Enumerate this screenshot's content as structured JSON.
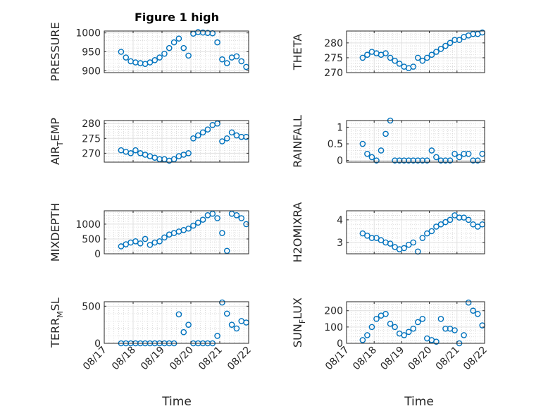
{
  "figure": {
    "title": "Figure 1 high",
    "xlabel": "Time",
    "marker_color": "#0072BD"
  },
  "x_ticks": [
    "08/17",
    "08/18",
    "08/19",
    "08/20",
    "08/21",
    "08/22"
  ],
  "chart_data": [
    {
      "type": "scatter",
      "ylabel_main": "PRESSURE",
      "ylabel_sub": "",
      "ylim": [
        895,
        1005
      ],
      "yticks": [
        900,
        950,
        1000
      ],
      "grid": true,
      "minor_grid": true,
      "x": [
        "08/17 14:00",
        "08/17 18:00",
        "08/17 22:00",
        "08/18 02:00",
        "08/18 06:00",
        "08/18 10:00",
        "08/18 14:00",
        "08/18 18:00",
        "08/18 22:00",
        "08/19 02:00",
        "08/19 06:00",
        "08/19 10:00",
        "08/19 14:00",
        "08/19 18:00",
        "08/19 22:00",
        "08/20 02:00",
        "08/20 06:00",
        "08/20 10:00",
        "08/20 14:00",
        "08/20 18:00",
        "08/20 22:00",
        "08/21 02:00",
        "08/21 06:00",
        "08/21 10:00",
        "08/21 14:00",
        "08/21 18:00",
        "08/21 22:00"
      ],
      "y": [
        950,
        935,
        925,
        922,
        920,
        918,
        922,
        928,
        935,
        945,
        960,
        975,
        985,
        960,
        940,
        998,
        1002,
        1001,
        1000,
        999,
        975,
        930,
        920,
        935,
        938,
        925,
        910
      ]
    },
    {
      "type": "scatter",
      "ylabel_main": "THETA",
      "ylabel_sub": "",
      "ylim": [
        270,
        284
      ],
      "yticks": [
        270,
        275,
        280
      ],
      "grid": true,
      "minor_grid": true,
      "x": [
        "08/17 14:00",
        "08/17 18:00",
        "08/17 22:00",
        "08/18 02:00",
        "08/18 06:00",
        "08/18 10:00",
        "08/18 14:00",
        "08/18 18:00",
        "08/18 22:00",
        "08/19 02:00",
        "08/19 06:00",
        "08/19 10:00",
        "08/19 14:00",
        "08/19 18:00",
        "08/19 22:00",
        "08/20 02:00",
        "08/20 06:00",
        "08/20 10:00",
        "08/20 14:00",
        "08/20 18:00",
        "08/20 22:00",
        "08/21 02:00",
        "08/21 06:00",
        "08/21 10:00",
        "08/21 14:00",
        "08/21 18:00",
        "08/21 22:00"
      ],
      "y": [
        275,
        276,
        277,
        276.5,
        276,
        276.5,
        275,
        274,
        273,
        272,
        271.5,
        272,
        275,
        274,
        275,
        276,
        277,
        278,
        279,
        280,
        281,
        281,
        282,
        282.5,
        283,
        283,
        283.5
      ]
    },
    {
      "type": "scatter",
      "ylabel_main": "AIR",
      "ylabel_sub": "T",
      "ylabel_rest": "EMP",
      "ylim": [
        267,
        281
      ],
      "yticks": [
        270,
        275,
        280
      ],
      "grid": true,
      "minor_grid": true,
      "x": [
        "08/17 14:00",
        "08/17 18:00",
        "08/17 22:00",
        "08/18 02:00",
        "08/18 06:00",
        "08/18 10:00",
        "08/18 14:00",
        "08/18 18:00",
        "08/18 22:00",
        "08/19 02:00",
        "08/19 06:00",
        "08/19 10:00",
        "08/19 14:00",
        "08/19 18:00",
        "08/19 22:00",
        "08/20 02:00",
        "08/20 06:00",
        "08/20 10:00",
        "08/20 14:00",
        "08/20 18:00",
        "08/20 22:00",
        "08/21 02:00",
        "08/21 06:00",
        "08/21 10:00",
        "08/21 14:00",
        "08/21 18:00",
        "08/21 22:00"
      ],
      "y": [
        271,
        270.5,
        270,
        271,
        270,
        269.5,
        269,
        268.5,
        268,
        268,
        267.5,
        268,
        269,
        269.5,
        270,
        275,
        276,
        277,
        278,
        279.5,
        280,
        274,
        275,
        277,
        276,
        275.5,
        275.5
      ]
    },
    {
      "type": "scatter",
      "ylabel_main": "RAINFALL",
      "ylabel_sub": "",
      "ylim": [
        -0.05,
        1.2
      ],
      "yticks": [
        0,
        0.5,
        1
      ],
      "grid": true,
      "minor_grid": true,
      "x": [
        "08/17 14:00",
        "08/17 18:00",
        "08/17 22:00",
        "08/18 02:00",
        "08/18 06:00",
        "08/18 10:00",
        "08/18 14:00",
        "08/18 18:00",
        "08/18 22:00",
        "08/19 02:00",
        "08/19 06:00",
        "08/19 10:00",
        "08/19 14:00",
        "08/19 18:00",
        "08/19 22:00",
        "08/20 02:00",
        "08/20 06:00",
        "08/20 10:00",
        "08/20 14:00",
        "08/20 18:00",
        "08/20 22:00",
        "08/21 02:00",
        "08/21 06:00",
        "08/21 10:00",
        "08/21 14:00",
        "08/21 18:00",
        "08/21 22:00"
      ],
      "y": [
        0.5,
        0.2,
        0.1,
        0,
        0.3,
        0.8,
        1.2,
        0,
        0,
        0,
        0,
        0,
        0,
        0,
        0,
        0.3,
        0.1,
        0,
        0,
        0,
        0.2,
        0.1,
        0.2,
        0.2,
        0,
        0,
        0.2
      ]
    },
    {
      "type": "scatter",
      "ylabel_main": "MIXDEPTH",
      "ylabel_sub": "",
      "ylim": [
        0,
        1450
      ],
      "yticks": [
        0,
        500,
        1000
      ],
      "grid": true,
      "minor_grid": true,
      "x": [
        "08/17 14:00",
        "08/17 18:00",
        "08/17 22:00",
        "08/18 02:00",
        "08/18 06:00",
        "08/18 10:00",
        "08/18 14:00",
        "08/18 18:00",
        "08/18 22:00",
        "08/19 02:00",
        "08/19 06:00",
        "08/19 10:00",
        "08/19 14:00",
        "08/19 18:00",
        "08/19 22:00",
        "08/20 02:00",
        "08/20 06:00",
        "08/20 10:00",
        "08/20 14:00",
        "08/20 18:00",
        "08/20 22:00",
        "08/21 02:00",
        "08/21 06:00",
        "08/21 10:00",
        "08/21 14:00",
        "08/21 18:00",
        "08/21 22:00"
      ],
      "y": [
        250,
        320,
        380,
        420,
        350,
        500,
        300,
        380,
        420,
        550,
        650,
        700,
        750,
        800,
        850,
        950,
        1050,
        1150,
        1300,
        1350,
        1200,
        700,
        100,
        1350,
        1300,
        1200,
        1000
      ]
    },
    {
      "type": "scatter",
      "ylabel_main": "H2OMIXRA",
      "ylabel_sub": "",
      "ylim": [
        2.5,
        4.4
      ],
      "yticks": [
        3,
        4
      ],
      "grid": true,
      "minor_grid": true,
      "x": [
        "08/17 14:00",
        "08/17 18:00",
        "08/17 22:00",
        "08/18 02:00",
        "08/18 06:00",
        "08/18 10:00",
        "08/18 14:00",
        "08/18 18:00",
        "08/18 22:00",
        "08/19 02:00",
        "08/19 06:00",
        "08/19 10:00",
        "08/19 14:00",
        "08/19 18:00",
        "08/19 22:00",
        "08/20 02:00",
        "08/20 06:00",
        "08/20 10:00",
        "08/20 14:00",
        "08/20 18:00",
        "08/20 22:00",
        "08/21 02:00",
        "08/21 06:00",
        "08/21 10:00",
        "08/21 14:00",
        "08/21 18:00",
        "08/21 22:00"
      ],
      "y": [
        3.4,
        3.3,
        3.2,
        3.2,
        3.1,
        3.0,
        2.95,
        2.8,
        2.7,
        2.75,
        2.9,
        3.0,
        2.6,
        3.2,
        3.4,
        3.5,
        3.7,
        3.8,
        3.9,
        4.0,
        4.2,
        4.1,
        4.1,
        4.0,
        3.8,
        3.7,
        3.8
      ]
    },
    {
      "type": "scatter",
      "ylabel_main": "TERR",
      "ylabel_sub": "M",
      "ylabel_rest": "SL",
      "ylim": [
        0,
        560
      ],
      "yticks": [
        0,
        500
      ],
      "grid": true,
      "minor_grid": true,
      "x": [
        "08/17 14:00",
        "08/17 18:00",
        "08/17 22:00",
        "08/18 02:00",
        "08/18 06:00",
        "08/18 10:00",
        "08/18 14:00",
        "08/18 18:00",
        "08/18 22:00",
        "08/19 02:00",
        "08/19 06:00",
        "08/19 10:00",
        "08/19 14:00",
        "08/19 18:00",
        "08/19 22:00",
        "08/20 02:00",
        "08/20 06:00",
        "08/20 10:00",
        "08/20 14:00",
        "08/20 18:00",
        "08/20 22:00",
        "08/21 02:00",
        "08/21 06:00",
        "08/21 10:00",
        "08/21 14:00",
        "08/21 18:00",
        "08/21 22:00"
      ],
      "y": [
        0,
        0,
        0,
        0,
        0,
        0,
        0,
        0,
        0,
        0,
        0,
        0,
        390,
        150,
        250,
        0,
        0,
        0,
        0,
        0,
        100,
        550,
        400,
        250,
        200,
        300,
        280
      ]
    },
    {
      "type": "scatter",
      "ylabel_main": "SUN",
      "ylabel_sub": "F",
      "ylabel_rest": "LUX",
      "ylim": [
        0,
        255
      ],
      "yticks": [
        0,
        100,
        200
      ],
      "grid": true,
      "minor_grid": true,
      "x": [
        "08/17 14:00",
        "08/17 18:00",
        "08/17 22:00",
        "08/18 02:00",
        "08/18 06:00",
        "08/18 10:00",
        "08/18 14:00",
        "08/18 18:00",
        "08/18 22:00",
        "08/19 02:00",
        "08/19 06:00",
        "08/19 10:00",
        "08/19 14:00",
        "08/19 18:00",
        "08/19 22:00",
        "08/20 02:00",
        "08/20 06:00",
        "08/20 10:00",
        "08/20 14:00",
        "08/20 18:00",
        "08/20 22:00",
        "08/21 02:00",
        "08/21 06:00",
        "08/21 10:00",
        "08/21 14:00",
        "08/21 18:00",
        "08/21 22:00"
      ],
      "y": [
        20,
        50,
        100,
        150,
        170,
        180,
        120,
        100,
        60,
        50,
        70,
        90,
        130,
        150,
        30,
        20,
        10,
        150,
        90,
        90,
        80,
        0,
        50,
        250,
        200,
        180,
        110
      ]
    }
  ]
}
